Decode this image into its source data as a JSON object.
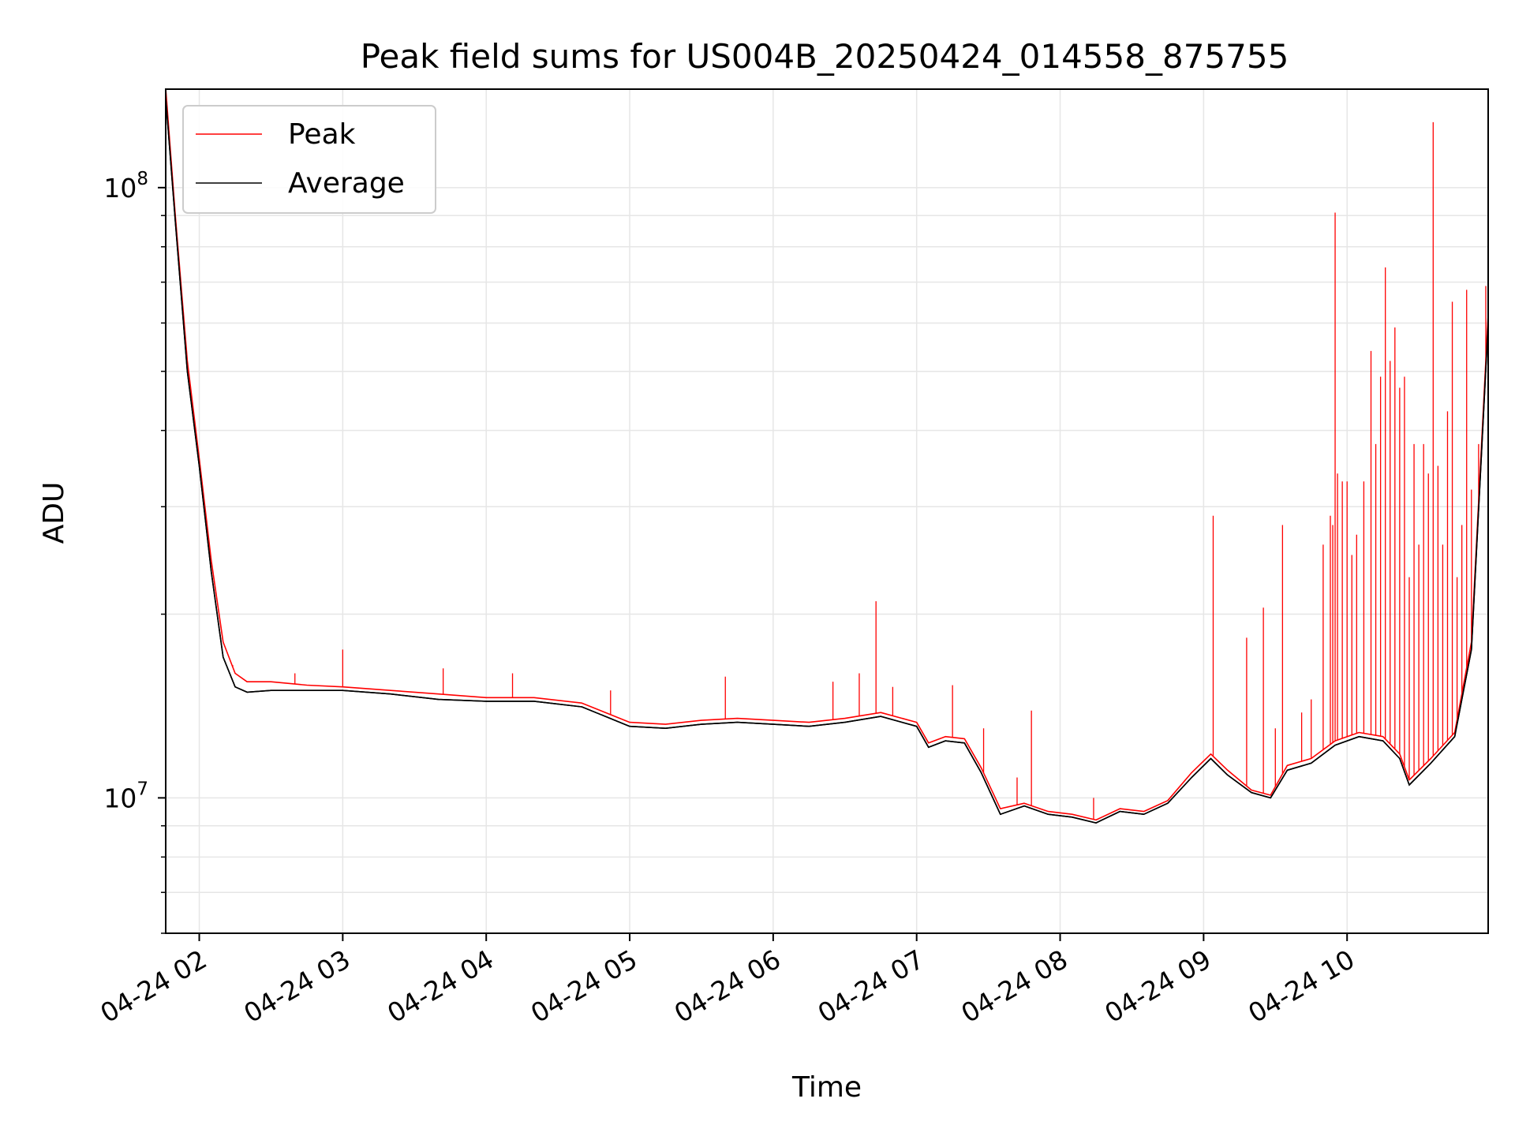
{
  "chart_data": {
    "type": "line",
    "title": "Peak field sums for US004B_20250424_014558_875755",
    "xlabel": "Time",
    "ylabel": "ADU",
    "yscale": "log",
    "grid": true,
    "legend_position": "upper-left",
    "xlim": [
      "2025-04-24 01:45:58",
      "2025-04-24 10:59:00"
    ],
    "ylim": [
      6000000,
      145000000
    ],
    "x_ticks": [
      {
        "time": "2025-04-24 02:00",
        "label": "04-24 02"
      },
      {
        "time": "2025-04-24 03:00",
        "label": "04-24 03"
      },
      {
        "time": "2025-04-24 04:00",
        "label": "04-24 04"
      },
      {
        "time": "2025-04-24 05:00",
        "label": "04-24 05"
      },
      {
        "time": "2025-04-24 06:00",
        "label": "04-24 06"
      },
      {
        "time": "2025-04-24 07:00",
        "label": "04-24 07"
      },
      {
        "time": "2025-04-24 08:00",
        "label": "04-24 08"
      },
      {
        "time": "2025-04-24 09:00",
        "label": "04-24 09"
      },
      {
        "time": "2025-04-24 10:00",
        "label": "04-24 10"
      }
    ],
    "y_ticks": [
      {
        "value": 10000000,
        "base": "10",
        "exp": "7"
      },
      {
        "value": 100000000,
        "base": "10",
        "exp": "8"
      }
    ],
    "series": [
      {
        "name": "Peak",
        "color": "#ff0000",
        "points": [
          [
            "2025-04-24 01:46",
            145000000
          ],
          [
            "2025-04-24 01:50",
            90000000
          ],
          [
            "2025-04-24 01:55",
            52000000
          ],
          [
            "2025-04-24 02:00",
            36000000
          ],
          [
            "2025-04-24 02:05",
            24500000
          ],
          [
            "2025-04-24 02:10",
            18000000
          ],
          [
            "2025-04-24 02:15",
            16000000
          ],
          [
            "2025-04-24 02:20",
            15500000
          ],
          [
            "2025-04-24 02:30",
            15500000
          ],
          [
            "2025-04-24 02:45",
            15300000
          ],
          [
            "2025-04-24 03:00",
            15200000
          ],
          [
            "2025-04-24 03:20",
            15000000
          ],
          [
            "2025-04-24 03:40",
            14800000
          ],
          [
            "2025-04-24 04:00",
            14600000
          ],
          [
            "2025-04-24 04:20",
            14600000
          ],
          [
            "2025-04-24 04:40",
            14300000
          ],
          [
            "2025-04-24 05:00",
            13300000
          ],
          [
            "2025-04-24 05:15",
            13200000
          ],
          [
            "2025-04-24 05:30",
            13400000
          ],
          [
            "2025-04-24 05:45",
            13500000
          ],
          [
            "2025-04-24 06:00",
            13400000
          ],
          [
            "2025-04-24 06:15",
            13300000
          ],
          [
            "2025-04-24 06:30",
            13500000
          ],
          [
            "2025-04-24 06:45",
            13800000
          ],
          [
            "2025-04-24 07:00",
            13300000
          ],
          [
            "2025-04-24 07:05",
            12300000
          ],
          [
            "2025-04-24 07:12",
            12600000
          ],
          [
            "2025-04-24 07:20",
            12500000
          ],
          [
            "2025-04-24 07:27",
            11200000
          ],
          [
            "2025-04-24 07:35",
            9600000
          ],
          [
            "2025-04-24 07:45",
            9800000
          ],
          [
            "2025-04-24 07:55",
            9500000
          ],
          [
            "2025-04-24 08:05",
            9400000
          ],
          [
            "2025-04-24 08:15",
            9200000
          ],
          [
            "2025-04-24 08:25",
            9600000
          ],
          [
            "2025-04-24 08:35",
            9500000
          ],
          [
            "2025-04-24 08:45",
            9900000
          ],
          [
            "2025-04-24 08:55",
            11000000
          ],
          [
            "2025-04-24 09:03",
            11800000
          ],
          [
            "2025-04-24 09:10",
            11100000
          ],
          [
            "2025-04-24 09:20",
            10300000
          ],
          [
            "2025-04-24 09:28",
            10100000
          ],
          [
            "2025-04-24 09:35",
            11300000
          ],
          [
            "2025-04-24 09:45",
            11600000
          ],
          [
            "2025-04-24 09:55",
            12400000
          ],
          [
            "2025-04-24 10:05",
            12800000
          ],
          [
            "2025-04-24 10:15",
            12600000
          ],
          [
            "2025-04-24 10:22",
            11800000
          ],
          [
            "2025-04-24 10:26",
            10700000
          ],
          [
            "2025-04-24 10:35",
            11600000
          ],
          [
            "2025-04-24 10:45",
            12800000
          ],
          [
            "2025-04-24 10:52",
            18000000
          ],
          [
            "2025-04-24 10:59",
            62000000
          ]
        ],
        "spikes": [
          [
            "2025-04-24 02:14",
            16500000
          ],
          [
            "2025-04-24 02:40",
            16000000
          ],
          [
            "2025-04-24 03:00",
            17500000
          ],
          [
            "2025-04-24 03:42",
            16300000
          ],
          [
            "2025-04-24 04:11",
            16000000
          ],
          [
            "2025-04-24 04:52",
            15000000
          ],
          [
            "2025-04-24 05:40",
            15800000
          ],
          [
            "2025-04-24 06:25",
            15500000
          ],
          [
            "2025-04-24 06:36",
            16000000
          ],
          [
            "2025-04-24 06:43",
            21000000
          ],
          [
            "2025-04-24 06:50",
            15200000
          ],
          [
            "2025-04-24 07:15",
            15300000
          ],
          [
            "2025-04-24 07:28",
            13000000
          ],
          [
            "2025-04-24 07:42",
            10800000
          ],
          [
            "2025-04-24 07:48",
            13900000
          ],
          [
            "2025-04-24 08:14",
            10000000
          ],
          [
            "2025-04-24 09:04",
            29000000
          ],
          [
            "2025-04-24 09:18",
            18300000
          ],
          [
            "2025-04-24 09:25",
            20500000
          ],
          [
            "2025-04-24 09:30",
            13000000
          ],
          [
            "2025-04-24 09:33",
            28000000
          ],
          [
            "2025-04-24 09:41",
            13800000
          ],
          [
            "2025-04-24 09:45",
            14500000
          ],
          [
            "2025-04-24 09:50",
            26000000
          ],
          [
            "2025-04-24 09:53",
            29000000
          ],
          [
            "2025-04-24 09:54",
            28000000
          ],
          [
            "2025-04-24 09:55",
            91000000
          ],
          [
            "2025-04-24 09:56",
            34000000
          ],
          [
            "2025-04-24 09:58",
            33000000
          ],
          [
            "2025-04-24 10:00",
            33000000
          ],
          [
            "2025-04-24 10:02",
            25000000
          ],
          [
            "2025-04-24 10:04",
            27000000
          ],
          [
            "2025-04-24 10:07",
            33000000
          ],
          [
            "2025-04-24 10:10",
            54000000
          ],
          [
            "2025-04-24 10:12",
            38000000
          ],
          [
            "2025-04-24 10:14",
            49000000
          ],
          [
            "2025-04-24 10:16",
            74000000
          ],
          [
            "2025-04-24 10:18",
            52000000
          ],
          [
            "2025-04-24 10:20",
            59000000
          ],
          [
            "2025-04-24 10:22",
            47000000
          ],
          [
            "2025-04-24 10:24",
            49000000
          ],
          [
            "2025-04-24 10:26",
            23000000
          ],
          [
            "2025-04-24 10:28",
            38000000
          ],
          [
            "2025-04-24 10:30",
            26000000
          ],
          [
            "2025-04-24 10:32",
            38000000
          ],
          [
            "2025-04-24 10:34",
            34000000
          ],
          [
            "2025-04-24 10:36",
            128000000
          ],
          [
            "2025-04-24 10:38",
            35000000
          ],
          [
            "2025-04-24 10:40",
            26000000
          ],
          [
            "2025-04-24 10:42",
            43000000
          ],
          [
            "2025-04-24 10:44",
            65000000
          ],
          [
            "2025-04-24 10:46",
            23000000
          ],
          [
            "2025-04-24 10:48",
            28000000
          ],
          [
            "2025-04-24 10:50",
            68000000
          ],
          [
            "2025-04-24 10:52",
            32000000
          ],
          [
            "2025-04-24 10:55",
            38000000
          ],
          [
            "2025-04-24 10:58",
            69000000
          ]
        ]
      },
      {
        "name": "Average",
        "color": "#000000",
        "points": [
          [
            "2025-04-24 01:46",
            140000000
          ],
          [
            "2025-04-24 01:50",
            88000000
          ],
          [
            "2025-04-24 01:55",
            50000000
          ],
          [
            "2025-04-24 02:00",
            35000000
          ],
          [
            "2025-04-24 02:05",
            23500000
          ],
          [
            "2025-04-24 02:10",
            17000000
          ],
          [
            "2025-04-24 02:15",
            15200000
          ],
          [
            "2025-04-24 02:20",
            14900000
          ],
          [
            "2025-04-24 02:30",
            15000000
          ],
          [
            "2025-04-24 02:45",
            15000000
          ],
          [
            "2025-04-24 03:00",
            15000000
          ],
          [
            "2025-04-24 03:20",
            14800000
          ],
          [
            "2025-04-24 03:40",
            14500000
          ],
          [
            "2025-04-24 04:00",
            14400000
          ],
          [
            "2025-04-24 04:20",
            14400000
          ],
          [
            "2025-04-24 04:40",
            14100000
          ],
          [
            "2025-04-24 05:00",
            13100000
          ],
          [
            "2025-04-24 05:15",
            13000000
          ],
          [
            "2025-04-24 05:30",
            13200000
          ],
          [
            "2025-04-24 05:45",
            13300000
          ],
          [
            "2025-04-24 06:00",
            13200000
          ],
          [
            "2025-04-24 06:15",
            13100000
          ],
          [
            "2025-04-24 06:30",
            13300000
          ],
          [
            "2025-04-24 06:45",
            13600000
          ],
          [
            "2025-04-24 07:00",
            13100000
          ],
          [
            "2025-04-24 07:05",
            12100000
          ],
          [
            "2025-04-24 07:12",
            12400000
          ],
          [
            "2025-04-24 07:20",
            12300000
          ],
          [
            "2025-04-24 07:27",
            11000000
          ],
          [
            "2025-04-24 07:35",
            9400000
          ],
          [
            "2025-04-24 07:45",
            9700000
          ],
          [
            "2025-04-24 07:55",
            9400000
          ],
          [
            "2025-04-24 08:05",
            9300000
          ],
          [
            "2025-04-24 08:15",
            9100000
          ],
          [
            "2025-04-24 08:25",
            9500000
          ],
          [
            "2025-04-24 08:35",
            9400000
          ],
          [
            "2025-04-24 08:45",
            9800000
          ],
          [
            "2025-04-24 08:55",
            10800000
          ],
          [
            "2025-04-24 09:03",
            11600000
          ],
          [
            "2025-04-24 09:10",
            10900000
          ],
          [
            "2025-04-24 09:20",
            10200000
          ],
          [
            "2025-04-24 09:28",
            10000000
          ],
          [
            "2025-04-24 09:35",
            11100000
          ],
          [
            "2025-04-24 09:45",
            11400000
          ],
          [
            "2025-04-24 09:55",
            12200000
          ],
          [
            "2025-04-24 10:05",
            12600000
          ],
          [
            "2025-04-24 10:15",
            12400000
          ],
          [
            "2025-04-24 10:22",
            11600000
          ],
          [
            "2025-04-24 10:26",
            10500000
          ],
          [
            "2025-04-24 10:35",
            11400000
          ],
          [
            "2025-04-24 10:45",
            12600000
          ],
          [
            "2025-04-24 10:52",
            17500000
          ],
          [
            "2025-04-24 10:59",
            60000000
          ]
        ]
      }
    ]
  }
}
